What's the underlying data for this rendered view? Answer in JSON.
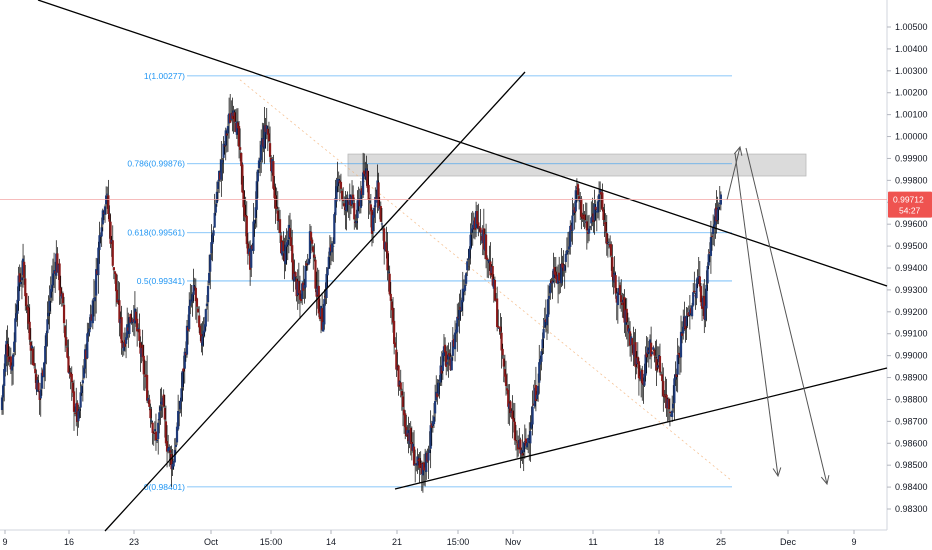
{
  "chart_data": {
    "type": "candlestick",
    "title": "",
    "y_axis": {
      "range": [
        0.9825,
        1.0055
      ],
      "ticks": [
        "1.00500",
        "1.00400",
        "1.00300",
        "1.00200",
        "1.00100",
        "1.00000",
        "0.99900",
        "0.99800",
        "0.99700",
        "0.99600",
        "0.99500",
        "0.99400",
        "0.99300",
        "0.99200",
        "0.99100",
        "0.99000",
        "0.98900",
        "0.98800",
        "0.98700",
        "0.98600",
        "0.98500",
        "0.98400",
        "0.98300"
      ]
    },
    "x_axis": {
      "ticks": [
        "9",
        "16",
        "23",
        "Oct",
        "15:00",
        "14",
        "21",
        "15:00",
        "Nov",
        "11",
        "18",
        "25",
        "Dec",
        "9"
      ]
    },
    "current_price": {
      "value": "0.99712",
      "countdown": "54:27",
      "value_num": 0.99712
    },
    "fibonacci": [
      {
        "label": "1(1.00277)",
        "value": 1.00277
      },
      {
        "label": "0.786(0.99876)",
        "value": 0.99876
      },
      {
        "label": "0.618(0.99561)",
        "value": 0.99561
      },
      {
        "label": "0.5(0.99341)",
        "value": 0.99341
      },
      {
        "label": "0(0.98401)",
        "value": 0.98401
      }
    ],
    "resistance_zone": {
      "low": 0.9982,
      "high": 0.9992
    },
    "colors": {
      "up": "#1f3a78",
      "down": "#8a1a1a",
      "fib": "#2196f3",
      "price_line": "#f3a5a5",
      "price_tag": "#ef5350",
      "trend": "#000000",
      "zone": "#d5d5d5"
    },
    "close_path": [
      0.9875,
      0.9905,
      0.9895,
      0.993,
      0.994,
      0.9915,
      0.9895,
      0.988,
      0.9905,
      0.993,
      0.9945,
      0.9925,
      0.99,
      0.988,
      0.987,
      0.9895,
      0.9915,
      0.993,
      0.996,
      0.9975,
      0.995,
      0.9925,
      0.9905,
      0.9915,
      0.992,
      0.9905,
      0.989,
      0.9875,
      0.986,
      0.988,
      0.986,
      0.985,
      0.987,
      0.9895,
      0.992,
      0.993,
      0.9905,
      0.992,
      0.995,
      0.9975,
      0.999,
      1.0005,
      1.0015,
      0.9995,
      0.9965,
      0.994,
      0.997,
      0.9995,
      1.0005,
      0.9985,
      0.996,
      0.9945,
      0.9955,
      0.9935,
      0.9925,
      0.994,
      0.9955,
      0.993,
      0.9915,
      0.994,
      0.9955,
      0.9985,
      0.9965,
      0.9975,
      0.996,
      0.9975,
      0.9985,
      0.996,
      0.9975,
      0.9955,
      0.9935,
      0.9905,
      0.9885,
      0.987,
      0.986,
      0.985,
      0.9845,
      0.9855,
      0.987,
      0.989,
      0.99,
      0.9895,
      0.991,
      0.9925,
      0.994,
      0.9955,
      0.9965,
      0.9955,
      0.9945,
      0.993,
      0.991,
      0.989,
      0.9875,
      0.986,
      0.9855,
      0.986,
      0.9875,
      0.989,
      0.991,
      0.993,
      0.994,
      0.9935,
      0.9945,
      0.996,
      0.9975,
      0.9965,
      0.9955,
      0.9965,
      0.9975,
      0.996,
      0.9945,
      0.993,
      0.9925,
      0.9915,
      0.9905,
      0.9895,
      0.989,
      0.9905,
      0.99,
      0.9895,
      0.988,
      0.9875,
      0.9895,
      0.991,
      0.992,
      0.9925,
      0.9935,
      0.992,
      0.995,
      0.9965,
      0.997
    ]
  }
}
